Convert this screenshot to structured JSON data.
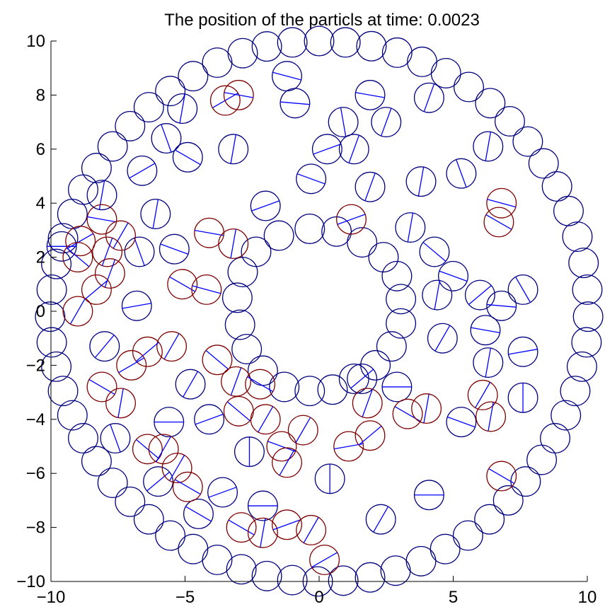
{
  "chart_data": {
    "type": "scatter",
    "title": "The position of the particls at time: 0.0023",
    "xlabel": "",
    "ylabel": "",
    "xlim": [
      -10,
      10
    ],
    "ylim": [
      -10,
      10
    ],
    "x_ticks": [
      -10,
      -5,
      0,
      5,
      10
    ],
    "y_ticks": [
      -10,
      -8,
      -6,
      -4,
      -2,
      0,
      2,
      4,
      6,
      8,
      10
    ],
    "x_tick_labels": [
      "−10",
      "−5",
      "0",
      "5",
      "10"
    ],
    "y_tick_labels": [
      "−10",
      "−8",
      "−6",
      "−4",
      "−2",
      "0",
      "2",
      "4",
      "6",
      "8",
      "10"
    ],
    "grid": false,
    "particle_radius": 0.55,
    "colors": {
      "wall": "#00007f",
      "blue": "#00007f",
      "red": "#7f0000",
      "orientation_line": "#0000ff",
      "axes": "#000000"
    },
    "series": [
      {
        "name": "outer_wall",
        "color": "#00007f",
        "x": [
          0.0,
          0.98,
          1.95,
          2.91,
          3.84,
          4.73,
          5.58,
          6.38,
          7.11,
          7.78,
          8.37,
          8.87,
          9.3,
          9.63,
          9.86,
          10.0,
          10.03,
          9.97,
          9.8,
          9.55,
          9.2,
          8.8,
          8.3,
          7.7,
          7.05,
          6.35,
          5.55,
          4.7,
          3.8,
          2.85,
          1.9,
          0.9,
          -0.05,
          -1.0,
          -1.95,
          -2.9,
          -3.8,
          -4.7,
          -5.55,
          -6.35,
          -7.05,
          -7.7,
          -8.3,
          -8.8,
          -9.2,
          -9.55,
          -9.8,
          -9.97,
          -10.03,
          -9.97,
          -9.8,
          -9.55,
          -9.2,
          -8.8,
          -8.3,
          -7.7,
          -7.05,
          -6.35,
          -5.55,
          -4.7,
          -3.8,
          -2.85,
          -1.95,
          -1.0
        ],
        "y": [
          10.0,
          9.95,
          9.81,
          9.57,
          9.23,
          8.81,
          8.3,
          7.7,
          7.03,
          6.28,
          5.47,
          4.62,
          3.71,
          2.76,
          1.79,
          0.8,
          -0.2,
          -1.15,
          -2.05,
          -2.95,
          -3.85,
          -4.7,
          -5.5,
          -6.3,
          -7.0,
          -7.7,
          -8.3,
          -8.8,
          -9.25,
          -9.6,
          -9.85,
          -9.97,
          -10.0,
          -9.95,
          -9.8,
          -9.55,
          -9.2,
          -8.8,
          -8.3,
          -7.7,
          -7.05,
          -6.35,
          -5.55,
          -4.7,
          -3.85,
          -2.95,
          -2.05,
          -1.15,
          -0.2,
          0.8,
          1.75,
          2.7,
          3.6,
          4.5,
          5.3,
          6.1,
          6.85,
          7.55,
          8.15,
          8.7,
          9.2,
          9.55,
          9.8,
          9.95
        ]
      },
      {
        "name": "inner_ring",
        "color": "#00007f",
        "x": [
          -0.35,
          0.65,
          1.6,
          2.4,
          2.9,
          3.05,
          3.05,
          2.7,
          2.1,
          1.3,
          0.5,
          -0.35,
          -1.3,
          -2.1,
          -2.7,
          -2.95,
          -3.05,
          -2.85,
          -2.35,
          -1.5
        ],
        "y": [
          3.05,
          2.95,
          2.55,
          2.0,
          1.3,
          0.45,
          -0.45,
          -1.3,
          -2.0,
          -2.5,
          -2.9,
          -2.95,
          -2.8,
          -2.2,
          -1.4,
          -0.5,
          0.5,
          1.45,
          2.2,
          2.8
        ]
      },
      {
        "name": "blue_particles",
        "color": "#00007f",
        "points": [
          {
            "x": -1.2,
            "y": 8.7,
            "a": -15
          },
          {
            "x": -0.9,
            "y": 7.7,
            "a": -5
          },
          {
            "x": 1.9,
            "y": 8.0,
            "a": -10
          },
          {
            "x": 4.1,
            "y": 7.9,
            "a": 70
          },
          {
            "x": -5.1,
            "y": 7.5,
            "a": 80
          },
          {
            "x": -5.7,
            "y": 6.4,
            "a": 110
          },
          {
            "x": -4.9,
            "y": 5.7,
            "a": -30
          },
          {
            "x": -3.2,
            "y": 6.0,
            "a": 80
          },
          {
            "x": 0.3,
            "y": 6.0,
            "a": 20
          },
          {
            "x": 0.9,
            "y": 7.0,
            "a": 100
          },
          {
            "x": 2.5,
            "y": 7.0,
            "a": 70
          },
          {
            "x": 1.3,
            "y": 6.0,
            "a": 70
          },
          {
            "x": 6.3,
            "y": 6.1,
            "a": 80
          },
          {
            "x": -6.6,
            "y": 5.2,
            "a": 30
          },
          {
            "x": -0.3,
            "y": 4.9,
            "a": -20
          },
          {
            "x": 1.9,
            "y": 4.6,
            "a": 70
          },
          {
            "x": 3.8,
            "y": 4.8,
            "a": 80
          },
          {
            "x": 5.3,
            "y": 5.1,
            "a": 110
          },
          {
            "x": -8.1,
            "y": 4.3,
            "a": 80
          },
          {
            "x": -2.0,
            "y": 3.9,
            "a": 20
          },
          {
            "x": -6.1,
            "y": 3.6,
            "a": 80
          },
          {
            "x": 3.4,
            "y": 3.1,
            "a": 80
          },
          {
            "x": 4.3,
            "y": 2.2,
            "a": -40
          },
          {
            "x": 5.0,
            "y": 1.3,
            "a": -20
          },
          {
            "x": -6.7,
            "y": 2.2,
            "a": 110
          },
          {
            "x": -5.4,
            "y": 2.3,
            "a": -20
          },
          {
            "x": -9.6,
            "y": 2.4,
            "a": 0
          },
          {
            "x": 4.4,
            "y": 0.6,
            "a": 80
          },
          {
            "x": 6.0,
            "y": 0.6,
            "a": 40
          },
          {
            "x": 6.8,
            "y": 0.2,
            "a": -5
          },
          {
            "x": 7.6,
            "y": 0.8,
            "a": 120
          },
          {
            "x": -6.8,
            "y": 0.2,
            "a": 10
          },
          {
            "x": 6.2,
            "y": -0.7,
            "a": -10
          },
          {
            "x": 4.6,
            "y": -1.0,
            "a": 60
          },
          {
            "x": -8.0,
            "y": -1.3,
            "a": 50
          },
          {
            "x": 7.6,
            "y": -1.5,
            "a": 10
          },
          {
            "x": 6.3,
            "y": -1.9,
            "a": 80
          },
          {
            "x": -4.8,
            "y": -2.7,
            "a": 60
          },
          {
            "x": 2.9,
            "y": -2.8,
            "a": 0
          },
          {
            "x": 1.6,
            "y": -2.5,
            "a": 40
          },
          {
            "x": 7.6,
            "y": -3.2,
            "a": 90
          },
          {
            "x": -4.1,
            "y": -4.0,
            "a": 20
          },
          {
            "x": -5.6,
            "y": -4.1,
            "a": 0
          },
          {
            "x": 5.3,
            "y": -4.1,
            "a": -20
          },
          {
            "x": -7.6,
            "y": -4.7,
            "a": 110
          },
          {
            "x": -2.6,
            "y": -5.2,
            "a": 90
          },
          {
            "x": -6.0,
            "y": -6.3,
            "a": 40
          },
          {
            "x": 0.4,
            "y": -6.2,
            "a": 90
          },
          {
            "x": -3.6,
            "y": -6.7,
            "a": 20
          },
          {
            "x": 4.1,
            "y": -6.8,
            "a": 0
          },
          {
            "x": -4.5,
            "y": -7.5,
            "a": -30
          },
          {
            "x": -2.1,
            "y": -7.2,
            "a": 0
          },
          {
            "x": 2.3,
            "y": -7.7,
            "a": 60
          }
        ]
      },
      {
        "name": "red_particles",
        "color": "#7f0000",
        "points": [
          {
            "x": -3.5,
            "y": 7.8,
            "a": 30
          },
          {
            "x": -3.0,
            "y": 8.0,
            "a": -10
          },
          {
            "x": -8.9,
            "y": 2.6,
            "a": 30
          },
          {
            "x": -8.1,
            "y": 3.4,
            "a": -10
          },
          {
            "x": -7.4,
            "y": 2.8,
            "a": 60
          },
          {
            "x": -7.9,
            "y": 2.2,
            "a": 70
          },
          {
            "x": -9.0,
            "y": 2.0,
            "a": -40
          },
          {
            "x": -7.8,
            "y": 1.4,
            "a": 70
          },
          {
            "x": -8.3,
            "y": 0.8,
            "a": 40
          },
          {
            "x": -9.0,
            "y": 0.0,
            "a": 60
          },
          {
            "x": -4.1,
            "y": 2.9,
            "a": -10
          },
          {
            "x": -3.2,
            "y": 2.5,
            "a": 80
          },
          {
            "x": 1.2,
            "y": 3.4,
            "a": 20
          },
          {
            "x": 6.8,
            "y": 4.0,
            "a": -15
          },
          {
            "x": 6.7,
            "y": 3.3,
            "a": -30
          },
          {
            "x": -5.1,
            "y": 1.0,
            "a": -30
          },
          {
            "x": -4.2,
            "y": 0.8,
            "a": -15
          },
          {
            "x": -5.5,
            "y": -1.3,
            "a": 60
          },
          {
            "x": -6.4,
            "y": -1.5,
            "a": 40
          },
          {
            "x": -7.0,
            "y": -2.0,
            "a": 30
          },
          {
            "x": -8.1,
            "y": -2.8,
            "a": -30
          },
          {
            "x": -7.4,
            "y": -3.4,
            "a": 80
          },
          {
            "x": -3.8,
            "y": -1.8,
            "a": -40
          },
          {
            "x": -3.1,
            "y": -2.6,
            "a": 70
          },
          {
            "x": -2.2,
            "y": -2.7,
            "a": -30
          },
          {
            "x": -3.0,
            "y": -3.7,
            "a": -40
          },
          {
            "x": -2.0,
            "y": -4.0,
            "a": 60
          },
          {
            "x": 1.8,
            "y": -3.4,
            "a": 70
          },
          {
            "x": 3.3,
            "y": -3.8,
            "a": -30
          },
          {
            "x": 4.0,
            "y": -3.6,
            "a": 80
          },
          {
            "x": 6.1,
            "y": -3.1,
            "a": 60
          },
          {
            "x": 6.4,
            "y": -3.9,
            "a": 80
          },
          {
            "x": -6.4,
            "y": -5.1,
            "a": -40
          },
          {
            "x": -5.8,
            "y": -5.1,
            "a": 60
          },
          {
            "x": -1.4,
            "y": -5.0,
            "a": -20
          },
          {
            "x": -0.6,
            "y": -4.4,
            "a": 60
          },
          {
            "x": 1.1,
            "y": -5.0,
            "a": 10
          },
          {
            "x": 1.9,
            "y": -4.6,
            "a": 40
          },
          {
            "x": -1.2,
            "y": -5.6,
            "a": 60
          },
          {
            "x": -5.3,
            "y": -5.8,
            "a": 60
          },
          {
            "x": -4.9,
            "y": -6.5,
            "a": -30
          },
          {
            "x": 6.8,
            "y": -6.1,
            "a": -30
          },
          {
            "x": -2.9,
            "y": -8.0,
            "a": -30
          },
          {
            "x": -2.1,
            "y": -8.2,
            "a": 80
          },
          {
            "x": -1.2,
            "y": -7.9,
            "a": 20
          },
          {
            "x": -0.3,
            "y": -8.1,
            "a": 60
          },
          {
            "x": 0.2,
            "y": -9.2,
            "a": 30
          }
        ]
      }
    ]
  }
}
